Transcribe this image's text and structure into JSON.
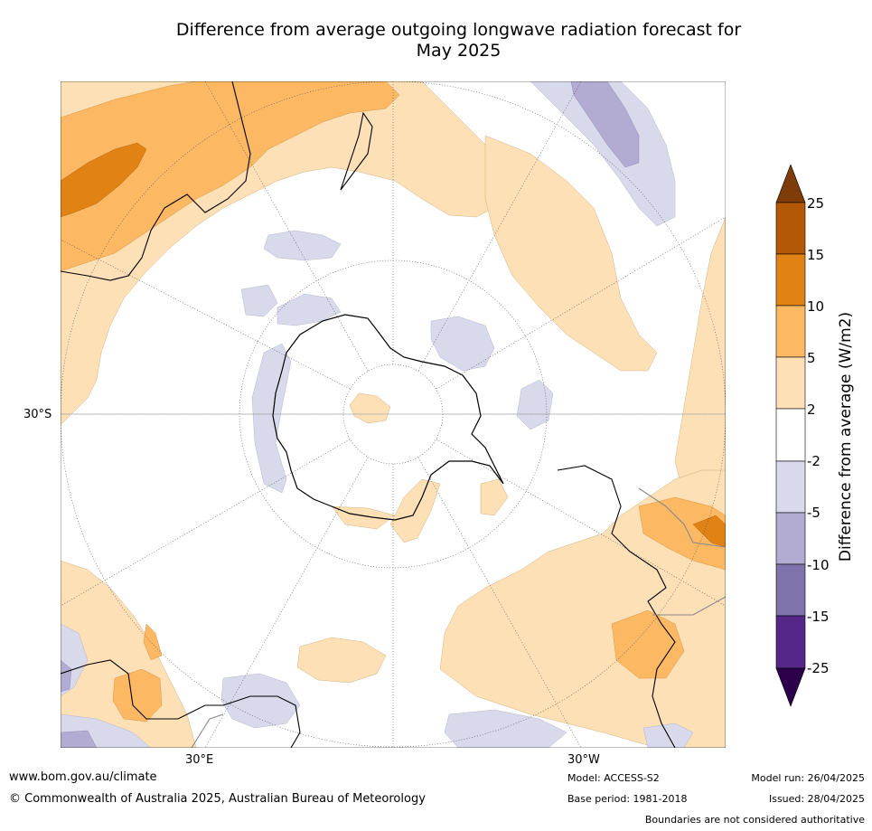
{
  "title_line1": "Difference from average outgoing longwave radiation forecast for",
  "title_line2": "May 2025",
  "map": {
    "labels": {
      "lat_30s": "30°S",
      "lon_30e": "30°E",
      "lon_30w": "30°W"
    },
    "projection": "south-polar-stereographic"
  },
  "colorbar": {
    "title": "Difference from average (W/m2)",
    "ticks": [
      "25",
      "15",
      "10",
      "5",
      "2",
      "-2",
      "-5",
      "-10",
      "-15",
      "-25"
    ],
    "colors": {
      "above_25": "#7f3b08",
      "15_25": "#b35806",
      "10_15": "#e08214",
      "5_10": "#fdb863",
      "2_5": "#fee0b6",
      "neutral": "#ffffff",
      "m5_m2": "#d8daeb",
      "m10_m5": "#b2abd2",
      "m15_m10": "#8073ac",
      "m25_m15": "#542788",
      "below_m25": "#2d004b"
    }
  },
  "footer": {
    "url": "www.bom.gov.au/climate",
    "copyright": "© Commonwealth of Australia 2025, Australian Bureau of Meteorology",
    "model": "Model: ACCESS-S2",
    "base_period": "Base period: 1981-2018",
    "model_run": "Model run: 26/04/2025",
    "issued": "Issued: 28/04/2025",
    "disclaimer": "Boundaries are not considered authoritative"
  }
}
